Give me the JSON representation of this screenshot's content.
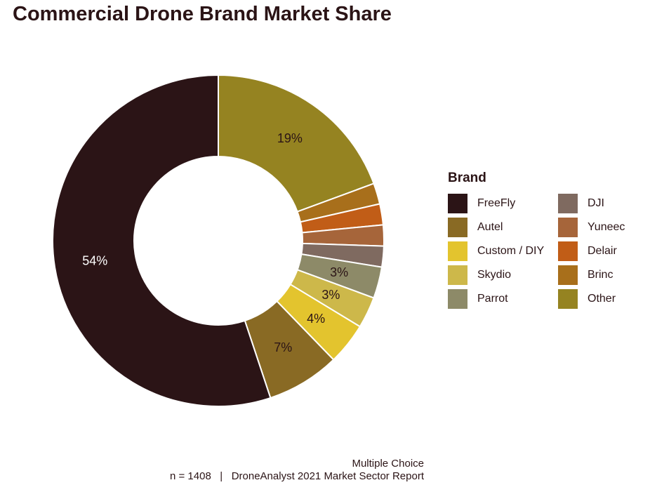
{
  "chart_data": {
    "type": "pie",
    "variant": "donut",
    "title": "Commercial Drone Brand Market Share",
    "legend_title": "Brand",
    "legend_placement": "right",
    "categories": [
      "FreeFly",
      "Autel",
      "Custom / DIY",
      "Skydio",
      "Parrot",
      "DJI",
      "Yuneec",
      "Delair",
      "Brinc",
      "Other"
    ],
    "legend_order": [
      "FreeFly",
      "Autel",
      "Custom / DIY",
      "Skydio",
      "Parrot",
      "DJI",
      "Yuneec",
      "Delair",
      "Brinc",
      "Other"
    ],
    "slices": [
      {
        "name": "Other",
        "value": 19,
        "label": "19%",
        "color": "#958321",
        "label_color": "#2b1416"
      },
      {
        "name": "Brinc",
        "value": 2,
        "label": "",
        "color": "#a86f1b",
        "label_color": "#2b1416"
      },
      {
        "name": "Delair",
        "value": 2,
        "label": "",
        "color": "#c15d17",
        "label_color": "#2b1416"
      },
      {
        "name": "Yuneec",
        "value": 2,
        "label": "",
        "color": "#a6653a",
        "label_color": "#2b1416"
      },
      {
        "name": "DJI",
        "value": 2,
        "label": "",
        "color": "#7f6a60",
        "label_color": "#2b1416"
      },
      {
        "name": "Parrot",
        "value": 3,
        "label": "3%",
        "color": "#8d8a68",
        "label_color": "#2b1416"
      },
      {
        "name": "Skydio",
        "value": 3,
        "label": "3%",
        "color": "#cdb84a",
        "label_color": "#2b1416"
      },
      {
        "name": "Custom / DIY",
        "value": 4,
        "label": "4%",
        "color": "#e3c42e",
        "label_color": "#2b1416"
      },
      {
        "name": "Autel",
        "value": 7,
        "label": "7%",
        "color": "#896a24",
        "label_color": "#2b1416"
      },
      {
        "name": "FreeFly",
        "value": 54,
        "label": "54%",
        "color": "#2b1416",
        "label_color": "#ffffff"
      }
    ]
  },
  "caption": {
    "line1": "Multiple Choice",
    "line2": "n = 1408   |   DroneAnalyst 2021 Market Sector Report"
  }
}
